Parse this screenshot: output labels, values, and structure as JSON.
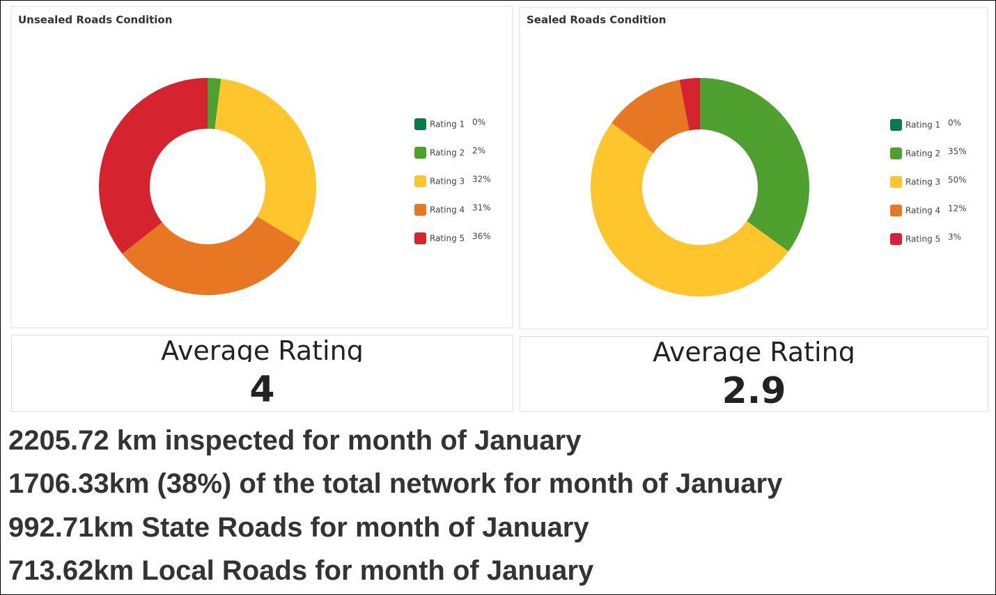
{
  "chart_data": [
    {
      "type": "pie",
      "title": "Unsealed Roads Condition",
      "categories": [
        "Rating 1",
        "Rating 2",
        "Rating 3",
        "Rating 4",
        "Rating 5"
      ],
      "values": [
        0,
        2,
        32,
        31,
        36
      ],
      "value_labels": [
        "0%",
        "2%",
        "32%",
        "31%",
        "36%"
      ],
      "colors": [
        "#0b7a4b",
        "#4fa12f",
        "#ffc52d",
        "#e77722",
        "#d5232f"
      ]
    },
    {
      "type": "pie",
      "title": "Sealed Roads Condition",
      "categories": [
        "Rating 1",
        "Rating 2",
        "Rating 3",
        "Rating 4",
        "Rating 5"
      ],
      "values": [
        0,
        35,
        50,
        12,
        3
      ],
      "value_labels": [
        "0%",
        "35%",
        "50%",
        "12%",
        "3%"
      ],
      "colors": [
        "#0b7a4b",
        "#4fa12f",
        "#ffc52d",
        "#e77722",
        "#d5232f"
      ]
    }
  ],
  "average_panels": [
    {
      "label": "Average Rating",
      "value": 4
    },
    {
      "label": "Average Rating",
      "value": 2.9
    }
  ],
  "summary": [
    "2205.72 km inspected for month of January",
    "1706.33km (38%) of the total network for month of January",
    "992.71km State Roads for month of January",
    "713.62km Local Roads for month of January"
  ]
}
